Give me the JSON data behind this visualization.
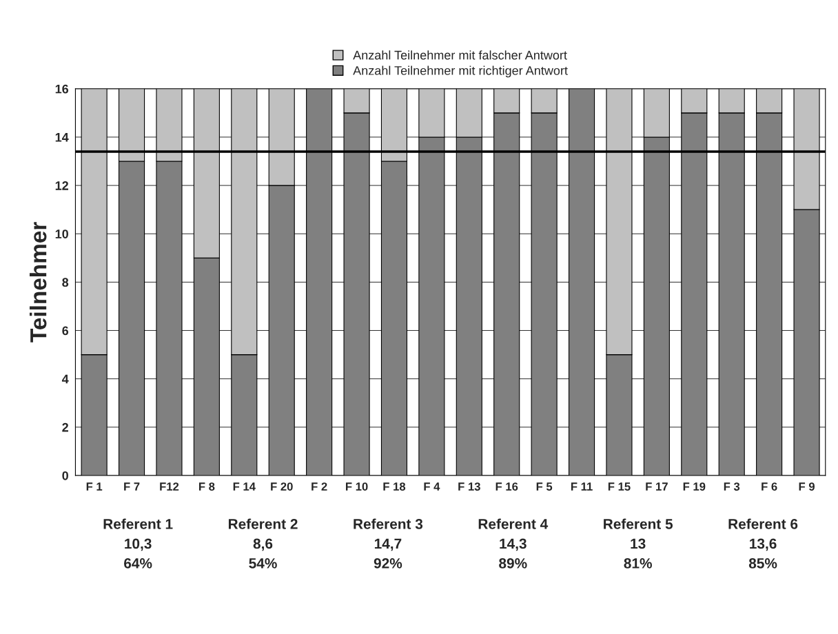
{
  "chart_data": {
    "type": "bar",
    "stacked": true,
    "ylabel": "Teilnehmer",
    "categories": [
      "F 1",
      "F 7",
      "F12",
      "F 8",
      "F 14",
      "F 20",
      "F 2",
      "F 10",
      "F 18",
      "F 4",
      "F 13",
      "F 16",
      "F 5",
      "F 11",
      "F 15",
      "F 17",
      "F 19",
      "F 3",
      "F 6",
      "F 9"
    ],
    "series": [
      {
        "name": "Anzahl Teilnehmer mit richtiger Antwort",
        "color": "#808080",
        "values": [
          5,
          13,
          13,
          9,
          5,
          12,
          16,
          15,
          13,
          14,
          14,
          15,
          15,
          16,
          5,
          14,
          15,
          15,
          15,
          11
        ]
      },
      {
        "name": "Anzahl Teilnehmer mit falscher Antwort",
        "color": "#c0c0c0",
        "values": [
          11,
          3,
          3,
          7,
          11,
          4,
          0,
          1,
          3,
          2,
          2,
          1,
          1,
          0,
          11,
          2,
          1,
          1,
          1,
          5
        ]
      }
    ],
    "ylim": [
      0,
      16
    ],
    "yticks": [
      0,
      2,
      4,
      6,
      8,
      10,
      12,
      14,
      16
    ],
    "grid": "y",
    "legend": "top",
    "ref_lines": [
      {
        "axis": "y",
        "value": 13.4,
        "color": "#000000"
      }
    ],
    "annotations": [
      "Referent 1\n10,3\n64%",
      "Referent 2\n8,6\n54%",
      "Referent 3\n14,7\n92%",
      "Referent 4\n14,3\n89%",
      "Referent 5\n13\n81%",
      "Referent 6\n13,6\n85%"
    ]
  }
}
